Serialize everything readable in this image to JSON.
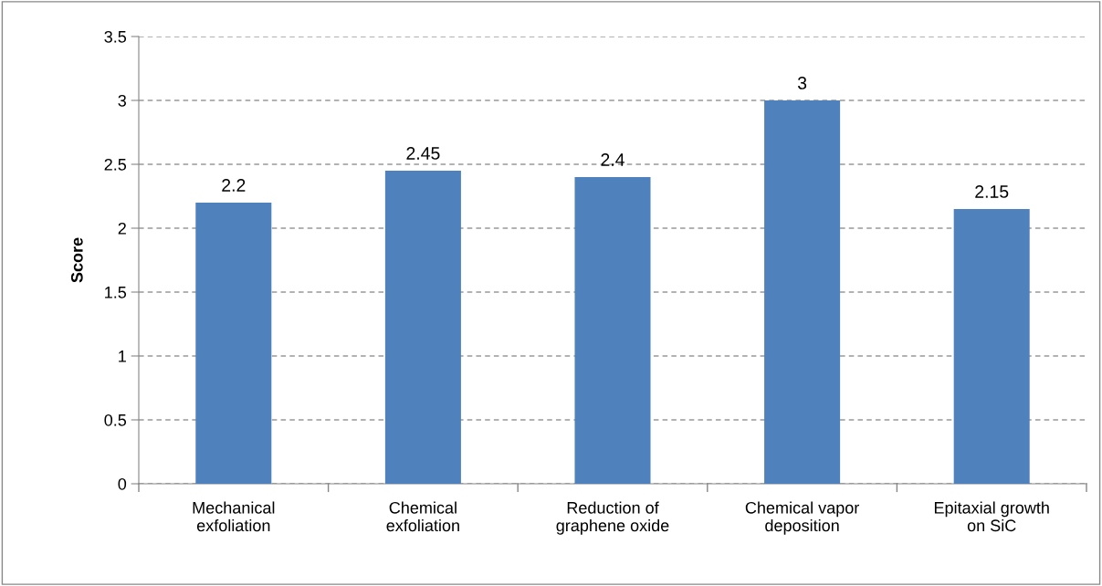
{
  "chart_data": {
    "type": "bar",
    "ylabel": "Score",
    "categories": [
      "Mechanical\nexfoliation",
      "Chemical\nexfoliation",
      "Reduction of\ngraphene oxide",
      "Chemical vapor\ndeposition",
      "Epitaxial growth\non SiC"
    ],
    "values": [
      2.2,
      2.45,
      2.4,
      3,
      2.15
    ],
    "color": "#4f81bd",
    "ylim": [
      0,
      3.5
    ],
    "yticks": [
      0,
      0.5,
      1,
      1.5,
      2,
      2.5,
      3,
      3.5
    ],
    "grid": "y",
    "data_labels": true,
    "legend": false
  }
}
